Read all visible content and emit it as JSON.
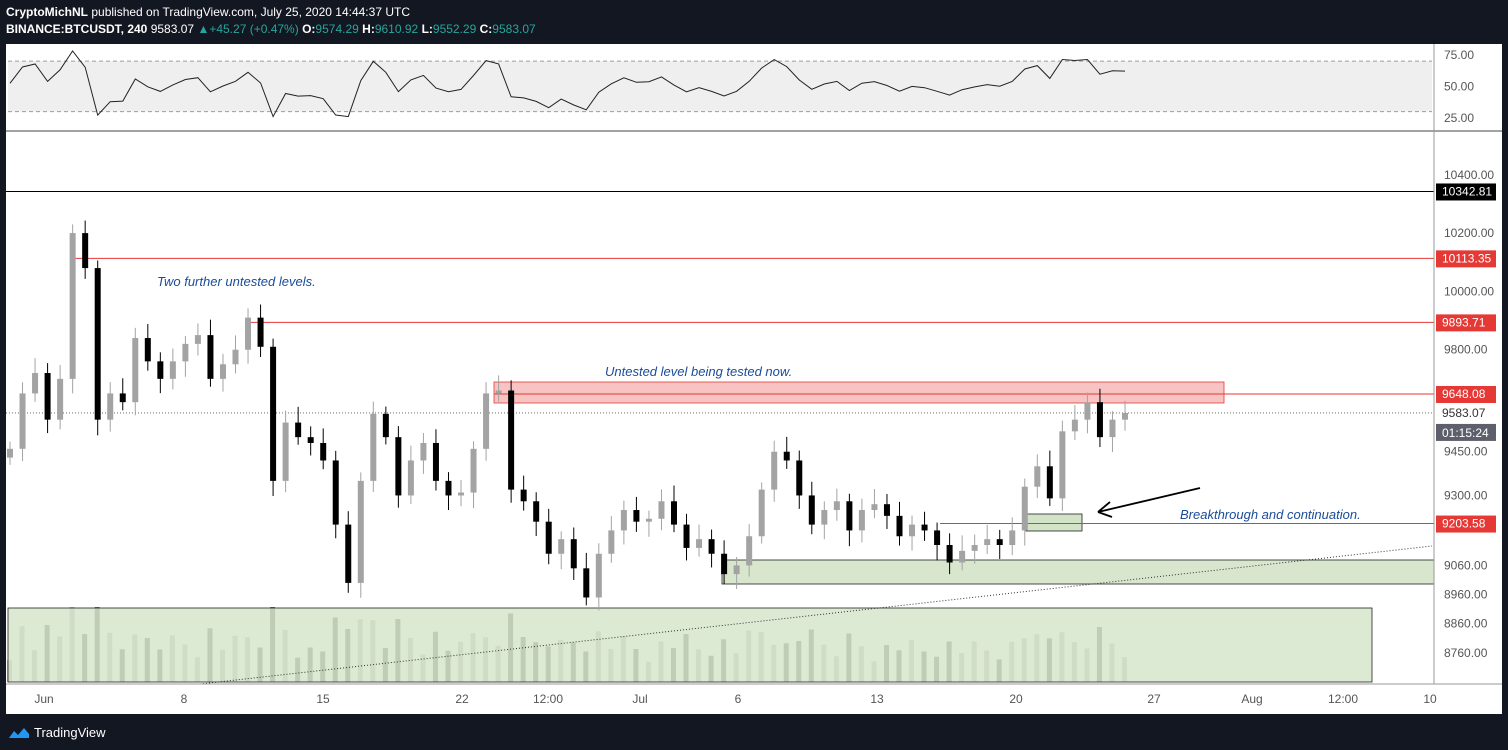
{
  "header": {
    "author": "CryptoMichNL",
    "published_text": "published on TradingView.com, July 25, 2020 14:44:37 UTC",
    "symbol": "BINANCE:BTCUSDT, 240",
    "last": "9583.07",
    "change_arrow": "▲",
    "change": "+45.27 (+0.47%)",
    "o_label": "O:",
    "o": "9574.29",
    "h_label": "H:",
    "h": "9610.92",
    "l_label": "L:",
    "l": "9552.29",
    "c_label": "C:",
    "c": "9583.07"
  },
  "footer": {
    "brand": "TradingView",
    "logo_icon": "tradingview-logo-icon"
  },
  "chart_data": {
    "type": "candlestick",
    "price_axis": {
      "range": [
        8660,
        10540
      ],
      "ticks": [
        "10400.00",
        "10200.00",
        "10000.00",
        "9800.00",
        "9450.00",
        "9300.00",
        "9060.00",
        "8960.00",
        "8860.00",
        "8760.00"
      ],
      "tick_values": [
        10400,
        10200,
        10000,
        9800,
        9450,
        9300,
        9060,
        8960,
        8860,
        8760
      ]
    },
    "rsi_panel": {
      "range": [
        17,
        82
      ],
      "ticks": [
        "75.00",
        "50.00",
        "25.00"
      ],
      "tick_values": [
        75,
        50,
        25
      ],
      "band": [
        30,
        70
      ]
    },
    "time_axis": {
      "labels": [
        "Jun",
        "8",
        "15",
        "22",
        "12:00",
        "Jul",
        "6",
        "13",
        "20",
        "27",
        "Aug",
        "12:00",
        "10"
      ]
    },
    "levels": [
      {
        "label": "10342.81",
        "value": 10342.81,
        "color": "#000000"
      },
      {
        "label": "10113.35",
        "value": 10113.35,
        "color": "#e53935"
      },
      {
        "label": "9893.71",
        "value": 9893.71,
        "color": "#e53935"
      },
      {
        "label": "9648.08",
        "value": 9648.08,
        "color": "#e53935"
      },
      {
        "label": "9203.58",
        "value": 9203.58,
        "color": "#e53935"
      }
    ],
    "current_price": {
      "label": "9583.07",
      "value": 9583.07,
      "countdown": "01:15:24"
    },
    "annotations": [
      "Two further untested levels.",
      "Untested level being tested now.",
      "Breakthrough and continuation."
    ],
    "colors": {
      "up": "#a3a3a3",
      "down": "#000000",
      "level_red": "#e53935",
      "zone_red": "#f7b9b9",
      "zone_green": "#d3e3c8",
      "text_blue": "#1a4c99"
    },
    "candles_4h_approx": [
      [
        9430,
        9460
      ],
      [
        9460,
        9650
      ],
      [
        9650,
        9720
      ],
      [
        9720,
        9560
      ],
      [
        9560,
        9700
      ],
      [
        9700,
        10200
      ],
      [
        10200,
        10080
      ],
      [
        10080,
        9560
      ],
      [
        9560,
        9650
      ],
      [
        9650,
        9620
      ],
      [
        9620,
        9840
      ],
      [
        9840,
        9760
      ],
      [
        9760,
        9700
      ],
      [
        9700,
        9760
      ],
      [
        9760,
        9820
      ],
      [
        9820,
        9850
      ],
      [
        9850,
        9700
      ],
      [
        9700,
        9750
      ],
      [
        9750,
        9800
      ],
      [
        9800,
        9910
      ],
      [
        9910,
        9810
      ],
      [
        9810,
        9350
      ],
      [
        9350,
        9550
      ],
      [
        9550,
        9500
      ],
      [
        9500,
        9480
      ],
      [
        9480,
        9420
      ],
      [
        9420,
        9200
      ],
      [
        9200,
        9000
      ],
      [
        9000,
        9350
      ],
      [
        9350,
        9580
      ],
      [
        9580,
        9500
      ],
      [
        9500,
        9300
      ],
      [
        9300,
        9420
      ],
      [
        9420,
        9480
      ],
      [
        9480,
        9350
      ],
      [
        9350,
        9300
      ],
      [
        9300,
        9310
      ],
      [
        9310,
        9460
      ],
      [
        9460,
        9650
      ],
      [
        9650,
        9660
      ],
      [
        9660,
        9320
      ],
      [
        9320,
        9280
      ],
      [
        9280,
        9210
      ],
      [
        9210,
        9100
      ],
      [
        9100,
        9150
      ],
      [
        9150,
        9050
      ],
      [
        9050,
        8950
      ],
      [
        8950,
        9100
      ],
      [
        9100,
        9180
      ],
      [
        9180,
        9250
      ],
      [
        9250,
        9210
      ],
      [
        9210,
        9220
      ],
      [
        9220,
        9280
      ],
      [
        9280,
        9200
      ],
      [
        9200,
        9120
      ],
      [
        9120,
        9150
      ],
      [
        9150,
        9100
      ],
      [
        9100,
        9030
      ],
      [
        9030,
        9060
      ],
      [
        9060,
        9160
      ],
      [
        9160,
        9320
      ],
      [
        9320,
        9450
      ],
      [
        9450,
        9420
      ],
      [
        9420,
        9300
      ],
      [
        9300,
        9200
      ],
      [
        9200,
        9250
      ],
      [
        9250,
        9280
      ],
      [
        9280,
        9180
      ],
      [
        9180,
        9250
      ],
      [
        9250,
        9270
      ],
      [
        9270,
        9230
      ],
      [
        9230,
        9160
      ],
      [
        9160,
        9200
      ],
      [
        9200,
        9180
      ],
      [
        9180,
        9130
      ],
      [
        9130,
        9070
      ],
      [
        9070,
        9110
      ],
      [
        9110,
        9130
      ],
      [
        9130,
        9150
      ],
      [
        9150,
        9130
      ],
      [
        9130,
        9180
      ],
      [
        9180,
        9330
      ],
      [
        9330,
        9400
      ],
      [
        9400,
        9290
      ],
      [
        9290,
        9520
      ],
      [
        9520,
        9560
      ],
      [
        9560,
        9620
      ],
      [
        9620,
        9500
      ],
      [
        9500,
        9560
      ],
      [
        9560,
        9583.07
      ]
    ]
  }
}
